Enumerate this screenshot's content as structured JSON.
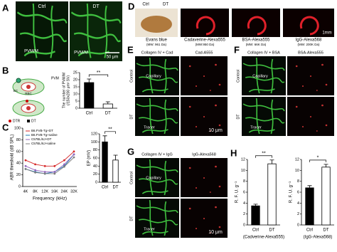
{
  "panels": {
    "A": {
      "letter": "A",
      "ctrl": "Ctrl",
      "dt": "DT",
      "pvm_ctrl": "PVM/M",
      "pvm_dt": "PVM/M",
      "scale": "50 μm"
    },
    "B": {
      "letter": "B",
      "pvm": "PVM",
      "ec": "EC",
      "rbc": "RBC",
      "dtr": "DTR",
      "dt": "DT"
    },
    "C": {
      "letter": "C"
    },
    "D": {
      "letter": "D",
      "ctrl": "Ctrl",
      "dt": "DT",
      "scale": "1mm",
      "images": [
        {
          "name": "Evans blue",
          "mw": "(MW: 961 Da)"
        },
        {
          "name": "Cadaverine-Alexa555",
          "mw": "(MW:950 Da)"
        },
        {
          "name": "BSA-Alexa555",
          "mw": "(MW: 66K Da)"
        },
        {
          "name": "IgG-Alexa568",
          "mw": "(MW: 200K Da)"
        }
      ]
    },
    "E": {
      "letter": "E",
      "merge": "Collagen IV + Cad",
      "tracer": "Cad-A555",
      "control": "Control",
      "dt": "DT",
      "capillary": "Capillary",
      "tracer_arrow": "Tracer",
      "scale": "10 μm"
    },
    "F": {
      "letter": "F",
      "merge": "Collagen IV + BSA",
      "tracer": "BSA-Alexa555",
      "control": "Control",
      "dt": "DT",
      "capillary": "Capillary",
      "tracer_arrow": "Tracer"
    },
    "G": {
      "letter": "G",
      "merge": "Collagen IV + IgG",
      "tracer": "IgG-Alexa568",
      "control": "Control",
      "dt": "DT",
      "capillary": "Capillary",
      "tracer_arrow": "Tracer",
      "scale": "10 μm"
    },
    "H": {
      "letter": "H"
    }
  },
  "chart_data": [
    {
      "type": "bar",
      "ylabel": [
        "The number of PVM/M",
        "(/150x200 μm² SV)"
      ],
      "categories": [
        "Ctrl",
        "DT"
      ],
      "values": [
        18,
        3
      ],
      "errors": [
        2.5,
        1.5
      ],
      "colors": [
        "#000000",
        "#ffffff"
      ],
      "ylim": [
        0,
        25
      ],
      "yticks": [
        0,
        5,
        10,
        15,
        20,
        25
      ],
      "annotation": "**"
    },
    {
      "type": "line",
      "ylabel": "ABR threshold (dB SPL)",
      "xlabel": "Frequency (kHz)",
      "categories": [
        "4K",
        "8K",
        "12K",
        "16K",
        "24K",
        "32K"
      ],
      "ylim": [
        0,
        100
      ],
      "yticks": [
        0,
        20,
        40,
        60,
        80,
        100
      ],
      "series": [
        {
          "name": "B6.FVB-Tg+DT",
          "color": "#d62728",
          "values": [
            45,
            38,
            35,
            35,
            45,
            60
          ]
        },
        {
          "name": "B6.FVB-Tg+saline",
          "color": "#1f77b4",
          "values": [
            30,
            25,
            22,
            25,
            35,
            55
          ]
        },
        {
          "name": "C57BL/6J+DT",
          "color": "#9467bd",
          "values": [
            35,
            28,
            25,
            25,
            38,
            55
          ]
        },
        {
          "name": "C57BL/6J+saline",
          "color": "#7f7f7f",
          "values": [
            30,
            24,
            22,
            22,
            34,
            50
          ]
        }
      ]
    },
    {
      "type": "bar",
      "ylabel": "EP (mV)",
      "categories": [
        "Ctrl",
        "DT"
      ],
      "values": [
        100,
        55
      ],
      "errors": [
        15,
        12
      ],
      "colors": [
        "#000000",
        "#ffffff"
      ],
      "ylim": [
        0,
        120
      ],
      "yticks": [
        0,
        20,
        40,
        60,
        80,
        100,
        120
      ],
      "annotation": "**"
    },
    {
      "type": "bar",
      "ylabel": "R. F. U. g⁻¹",
      "xlabel": "(Cadverine-Alexa555)",
      "categories": [
        "Ctrl",
        "DT"
      ],
      "values": [
        3.5,
        11.2
      ],
      "errors": [
        0.3,
        0.7
      ],
      "colors": [
        "#000000",
        "#ffffff"
      ],
      "ylim": [
        0,
        12
      ],
      "yticks": [
        0,
        2,
        4,
        6,
        8,
        10,
        12
      ],
      "annotation": "**"
    },
    {
      "type": "bar",
      "ylabel": "R. F. U. g⁻¹",
      "xlabel": "(IgG-Alexa568)",
      "categories": [
        "Ctrl",
        "DT"
      ],
      "values": [
        6.8,
        10.6
      ],
      "errors": [
        0.4,
        0.5
      ],
      "colors": [
        "#000000",
        "#ffffff"
      ],
      "ylim": [
        0,
        12
      ],
      "yticks": [
        0,
        2,
        4,
        6,
        8,
        10,
        12
      ],
      "annotation": "*"
    }
  ]
}
